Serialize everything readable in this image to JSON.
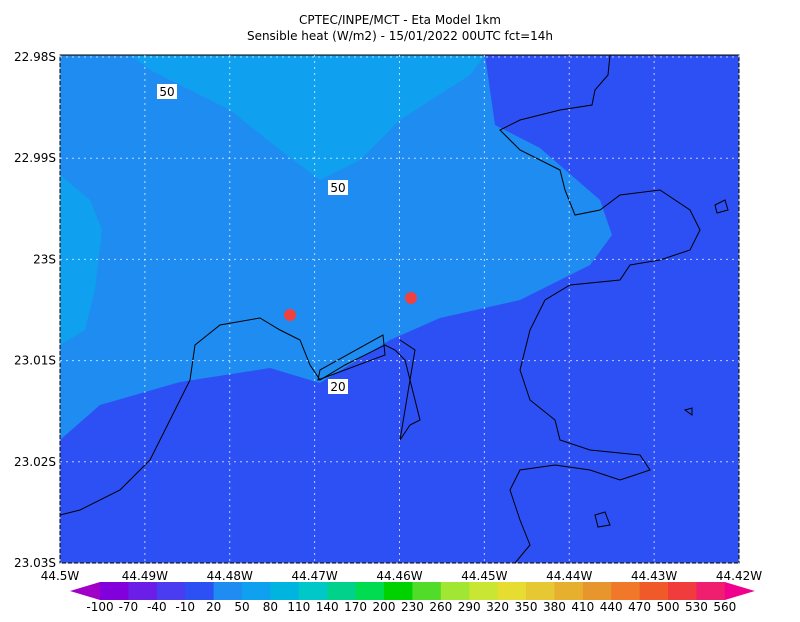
{
  "header": {
    "title": "CPTEC/INPE/MCT -  Eta Model 1km",
    "subtitle": "Sensible heat (W/m2) - 15/01/2022 00UTC fct=14h"
  },
  "axes": {
    "y_ticks": [
      "22.98S",
      "22.99S",
      "23S",
      "23.01S",
      "23.02S",
      "23.03S"
    ],
    "x_ticks": [
      "44.5W",
      "44.49W",
      "44.48W",
      "44.47W",
      "44.46W",
      "44.45W",
      "44.44W",
      "44.43W",
      "44.42W"
    ]
  },
  "contour_labels": [
    "50",
    "50",
    "20"
  ],
  "colorbar": {
    "levels": [
      -100,
      -70,
      -40,
      -10,
      20,
      50,
      80,
      110,
      140,
      170,
      200,
      230,
      260,
      290,
      320,
      350,
      380,
      410,
      440,
      470,
      500,
      530,
      560
    ],
    "colors": [
      "#a000c8",
      "#8200dc",
      "#6a1ee6",
      "#4a3cf0",
      "#2d50f5",
      "#1e8cf0",
      "#0fa0f0",
      "#00b4e0",
      "#00c8c8",
      "#00d28c",
      "#00dc50",
      "#00d200",
      "#50dc28",
      "#a0e632",
      "#c8e632",
      "#e6dc32",
      "#e6c832",
      "#e6af2d",
      "#e6962d",
      "#f07828",
      "#f05a28",
      "#f03c3c",
      "#f01e6e",
      "#f0008c"
    ]
  }
}
